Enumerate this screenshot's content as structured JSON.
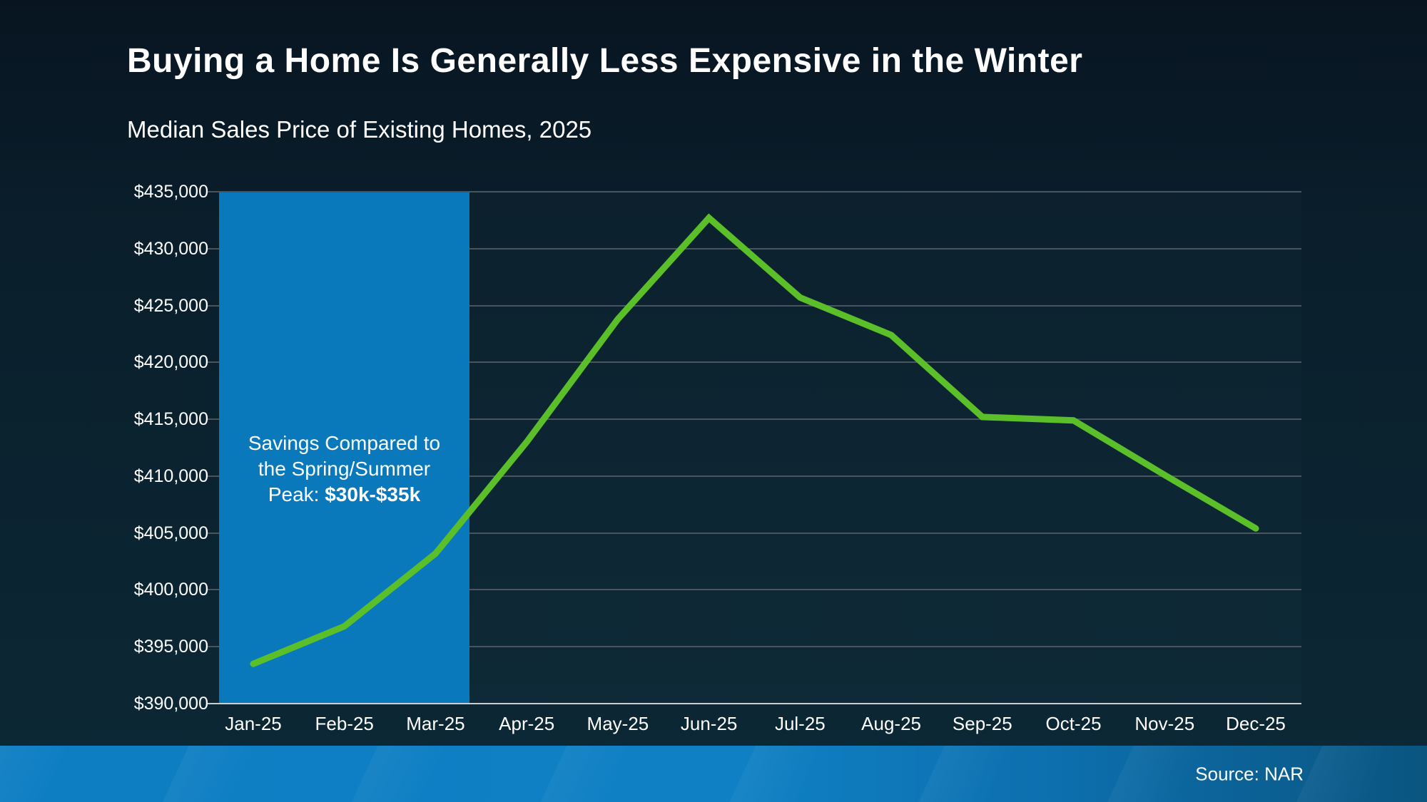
{
  "title": "Buying a Home Is Generally Less Expensive in the Winter",
  "subtitle": "Median Sales Price of Existing Homes, 2025",
  "source": "Source: NAR",
  "annotation": {
    "line1": "Savings Compared to",
    "line2": "the Spring/Summer",
    "line3_prefix": "Peak: ",
    "line3_bold": "$30k-$35k"
  },
  "colors": {
    "line": "#5abf28",
    "highlight_band": "#0979bc",
    "gridline": "#4b545d",
    "axis_line": "#c9ced3",
    "footer_bar_left": "#0e7ec3",
    "footer_bar_right": "#0a5580",
    "text": "#ffffff"
  },
  "chart_data": {
    "type": "line",
    "title": "Median Sales Price of Existing Homes, 2025",
    "categories": [
      "Jan-25",
      "Feb-25",
      "Mar-25",
      "Apr-25",
      "May-25",
      "Jun-25",
      "Jul-25",
      "Aug-25",
      "Sep-25",
      "Oct-25",
      "Nov-25",
      "Dec-25"
    ],
    "values": [
      393500,
      396800,
      403200,
      413000,
      423800,
      432700,
      425700,
      422400,
      415200,
      414900,
      410100,
      405400
    ],
    "xlabel": "",
    "ylabel": "",
    "ylim": [
      390000,
      435000
    ],
    "ytick_step": 5000,
    "y_tick_labels_top_to_bottom": [
      "$435,000",
      "$430,000",
      "$425,000",
      "$420,000",
      "$415,000",
      "$410,000",
      "$405,000",
      "$400,000",
      "$395,000",
      "$390,000"
    ],
    "grid": true,
    "legend": "none",
    "highlight_region": {
      "covers_categories": [
        "Jan-25",
        "Feb-25",
        "Mar-25"
      ],
      "label": "Savings Compared to the Spring/Summer Peak: $30k-$35k"
    }
  }
}
